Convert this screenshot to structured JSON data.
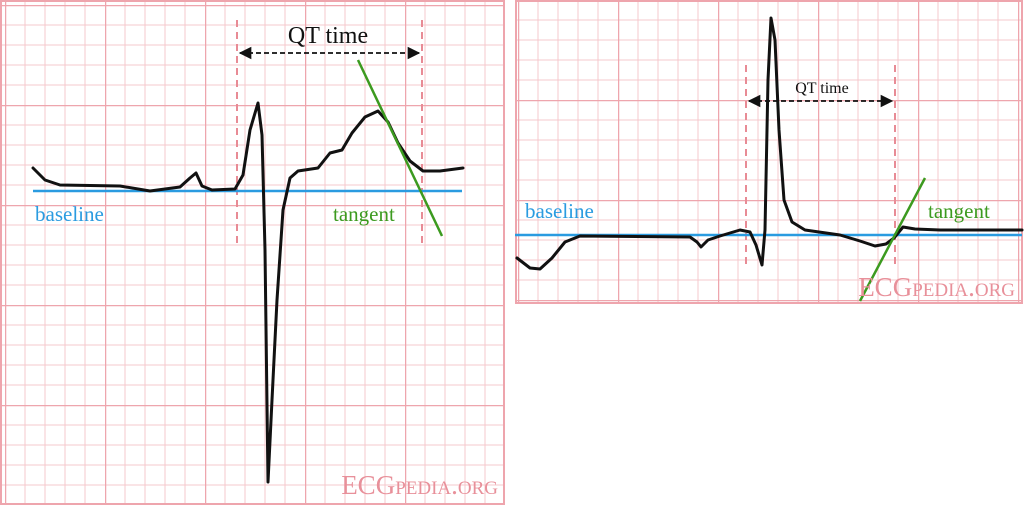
{
  "panels": [
    {
      "qt_label": "QT time",
      "baseline_label": "baseline",
      "tangent_label": "tangent",
      "watermark": "ECGpedia.org"
    },
    {
      "qt_label": "QT time",
      "baseline_label": "baseline",
      "tangent_label": "tangent",
      "watermark": "ECGpedia.org"
    }
  ]
}
